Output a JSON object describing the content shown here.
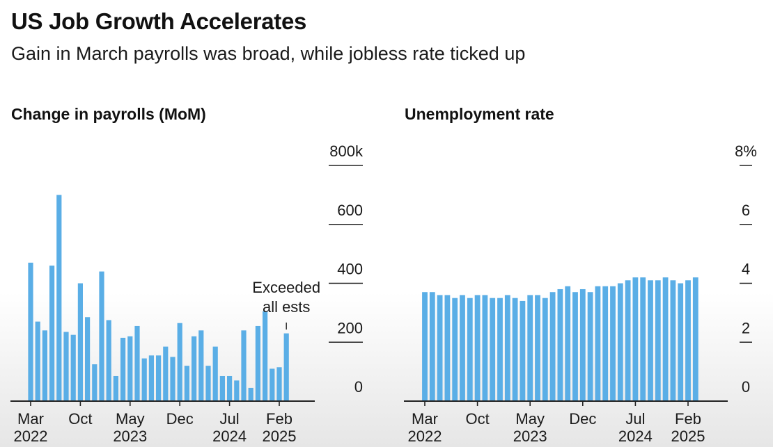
{
  "header": {
    "title": "US Job Growth Accelerates",
    "subtitle": "Gain in March payrolls was broad, while jobless rate ticked up"
  },
  "colors": {
    "bar": "#5aaee6",
    "axis": "#222222",
    "text": "#1a1a1a"
  },
  "chart_data": [
    {
      "type": "bar",
      "title": "Change in payrolls (MoM)",
      "x": [
        "2022-03",
        "2022-04",
        "2022-05",
        "2022-06",
        "2022-07",
        "2022-08",
        "2022-09",
        "2022-10",
        "2022-11",
        "2022-12",
        "2023-01",
        "2023-02",
        "2023-03",
        "2023-04",
        "2023-05",
        "2023-06",
        "2023-07",
        "2023-08",
        "2023-09",
        "2023-10",
        "2023-11",
        "2023-12",
        "2024-01",
        "2024-02",
        "2024-03",
        "2024-04",
        "2024-05",
        "2024-06",
        "2024-07",
        "2024-08",
        "2024-09",
        "2024-10",
        "2024-11",
        "2024-12",
        "2025-01",
        "2025-02",
        "2025-03"
      ],
      "values": [
        470,
        270,
        240,
        460,
        700,
        235,
        225,
        400,
        285,
        125,
        440,
        275,
        85,
        215,
        220,
        255,
        145,
        155,
        155,
        185,
        150,
        265,
        120,
        220,
        240,
        120,
        185,
        85,
        85,
        70,
        240,
        45,
        255,
        305,
        110,
        115,
        230
      ],
      "ylim": [
        0,
        800
      ],
      "y_ticks": [
        0,
        200,
        400,
        600,
        800
      ],
      "y_tick_labels": [
        "0",
        "200",
        "400",
        "600",
        "800k"
      ],
      "x_tick_labels": [
        {
          "at": "2022-03",
          "lines": [
            "Mar",
            "2022"
          ]
        },
        {
          "at": "2022-10",
          "lines": [
            "Oct",
            ""
          ]
        },
        {
          "at": "2023-05",
          "lines": [
            "May",
            "2023"
          ]
        },
        {
          "at": "2023-12",
          "lines": [
            "Dec",
            ""
          ]
        },
        {
          "at": "2024-07",
          "lines": [
            "Jul",
            "2024"
          ]
        },
        {
          "at": "2025-02",
          "lines": [
            "Feb",
            "2025"
          ]
        }
      ],
      "annotation": {
        "lines": [
          "Exceeded",
          "all ests"
        ],
        "at": "2025-03"
      }
    },
    {
      "type": "bar",
      "title": "Unemployment rate",
      "x": [
        "2022-03",
        "2022-04",
        "2022-05",
        "2022-06",
        "2022-07",
        "2022-08",
        "2022-09",
        "2022-10",
        "2022-11",
        "2022-12",
        "2023-01",
        "2023-02",
        "2023-03",
        "2023-04",
        "2023-05",
        "2023-06",
        "2023-07",
        "2023-08",
        "2023-09",
        "2023-10",
        "2023-11",
        "2023-12",
        "2024-01",
        "2024-02",
        "2024-03",
        "2024-04",
        "2024-05",
        "2024-06",
        "2024-07",
        "2024-08",
        "2024-09",
        "2024-10",
        "2024-11",
        "2024-12",
        "2025-01",
        "2025-02",
        "2025-03"
      ],
      "values": [
        3.7,
        3.7,
        3.6,
        3.6,
        3.5,
        3.6,
        3.5,
        3.6,
        3.6,
        3.5,
        3.5,
        3.6,
        3.5,
        3.4,
        3.6,
        3.6,
        3.5,
        3.7,
        3.8,
        3.9,
        3.7,
        3.8,
        3.7,
        3.9,
        3.9,
        3.9,
        4.0,
        4.1,
        4.2,
        4.2,
        4.1,
        4.1,
        4.2,
        4.1,
        4.0,
        4.1,
        4.2
      ],
      "ylim": [
        0,
        8
      ],
      "y_ticks": [
        0,
        2,
        4,
        6,
        8
      ],
      "y_tick_labels": [
        "0",
        "2",
        "4",
        "6",
        "8%"
      ],
      "x_tick_labels": [
        {
          "at": "2022-03",
          "lines": [
            "Mar",
            "2022"
          ]
        },
        {
          "at": "2022-10",
          "lines": [
            "Oct",
            ""
          ]
        },
        {
          "at": "2023-05",
          "lines": [
            "May",
            "2023"
          ]
        },
        {
          "at": "2023-12",
          "lines": [
            "Dec",
            ""
          ]
        },
        {
          "at": "2024-07",
          "lines": [
            "Jul",
            "2024"
          ]
        },
        {
          "at": "2025-02",
          "lines": [
            "Feb",
            "2025"
          ]
        }
      ]
    }
  ]
}
